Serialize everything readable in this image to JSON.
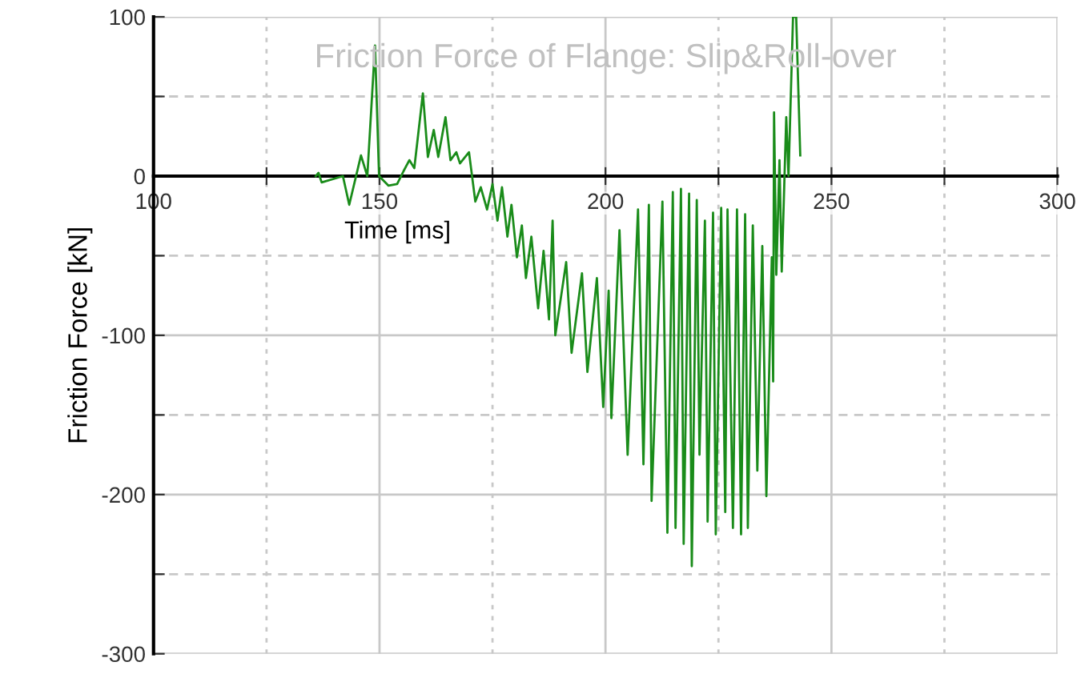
{
  "chart_data": {
    "type": "line",
    "title": "Friction Force of Flange: Slip&Roll-over",
    "xlabel": "Time [ms]",
    "ylabel": "Friction Force [kN]",
    "xlim": [
      100,
      300
    ],
    "xticks": [
      100,
      {
        "value": 125,
        "label": null
      },
      150,
      {
        "value": 175,
        "label": null
      },
      200,
      {
        "value": 225,
        "label": null
      },
      250,
      {
        "value": 275,
        "label": null
      },
      300
    ],
    "ylim": [
      -300,
      100
    ],
    "yticks": [
      -300,
      {
        "value": -250,
        "label": null
      },
      -200,
      {
        "value": -150,
        "label": null
      },
      -100,
      {
        "value": -50,
        "label": null
      },
      0,
      {
        "value": 50,
        "label": null
      },
      100
    ],
    "grid": true,
    "marker": "none",
    "line_style": "solid",
    "series": [
      {
        "color": "#1a8c1a",
        "x": [
          135.9,
          136.5,
          137.2,
          141.9,
          143.3,
          145.9,
          147.3,
          149.0,
          149.9,
          152.0,
          153.9,
          155.3,
          156.6,
          157.7,
          159.6,
          160.7,
          162.0,
          163.0,
          164.6,
          165.7,
          167.0,
          167.8,
          169.8,
          171.2,
          172.4,
          173.8,
          175.0,
          176.1,
          177.1,
          178.3,
          179.2,
          180.4,
          181.5,
          182.4,
          183.6,
          185.1,
          186.3,
          187.5,
          188.3,
          188.9,
          191.3,
          192.5,
          194.8,
          196.0,
          198.1,
          199.5,
          200.7,
          201.3,
          203.1,
          204.9,
          207.2,
          208.4,
          209.6,
          210.2,
          212.6,
          213.7,
          214.9,
          215.5,
          216.7,
          217.3,
          218.5,
          219.1,
          220.2,
          220.8,
          222.0,
          222.6,
          223.8,
          224.4,
          225.6,
          226.5,
          227.0,
          228.2,
          229.1,
          230.0,
          230.9,
          231.5,
          232.6,
          233.6,
          234.7,
          235.6,
          236.8,
          237.1,
          237.3,
          237.8,
          238.5,
          239.0,
          240.0,
          240.5,
          241.5,
          242.2,
          243.1
        ],
        "values": [
          0,
          2,
          -4,
          0,
          -18,
          13,
          0,
          82,
          0,
          -6,
          -5,
          3,
          10,
          5,
          52,
          12,
          29,
          12,
          37,
          10,
          15,
          8,
          15,
          -16,
          -7,
          -21,
          -5,
          -28,
          -7,
          -38,
          -18,
          -51,
          -31,
          -64,
          -38,
          -83,
          -47,
          -90,
          -28,
          -100,
          -54,
          -111,
          -61,
          -123,
          -64,
          -145,
          -72,
          -152,
          -34,
          -175,
          -21,
          -181,
          -18,
          -204,
          -16,
          -224,
          -10,
          -221,
          -8,
          -231,
          -11,
          -245,
          -15,
          -175,
          -28,
          -217,
          -23,
          -225,
          -20,
          -211,
          -21,
          -221,
          -21,
          -225,
          -24,
          -221,
          -31,
          -185,
          -44,
          -201,
          -51,
          -129,
          40,
          -62,
          10,
          -60,
          37,
          0,
          100,
          100,
          13
        ]
      }
    ]
  }
}
